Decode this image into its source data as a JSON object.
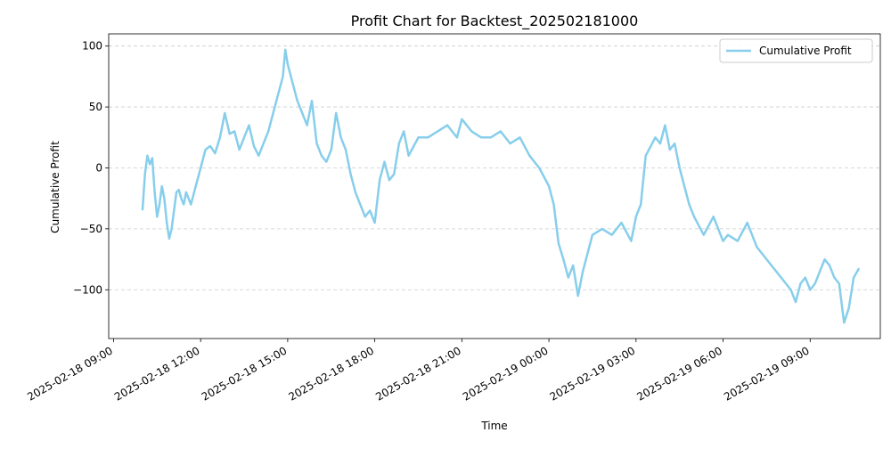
{
  "chart_data": {
    "type": "line",
    "title": "Profit Chart for Backtest_202502181000",
    "xlabel": "Time",
    "ylabel": "Cumulative Profit",
    "x_ticks": [
      "2025-02-18 09:00",
      "2025-02-18 12:00",
      "2025-02-18 15:00",
      "2025-02-18 18:00",
      "2025-02-18 21:00",
      "2025-02-19 00:00",
      "2025-02-19 03:00",
      "2025-02-19 06:00",
      "2025-02-19 09:00"
    ],
    "y_ticks": [
      -100,
      -50,
      0,
      50,
      100
    ],
    "xlim": [
      "2025-02-18 08:50",
      "2025-02-19 11:25"
    ],
    "ylim": [
      -140,
      110
    ],
    "grid": {
      "y": true,
      "x": false,
      "style": "dashed"
    },
    "legend": {
      "position": "top-right"
    },
    "colors": {
      "series": "#87ceeb",
      "grid": "#cccccc",
      "axis": "#000000"
    },
    "series": [
      {
        "name": "Cumulative Profit",
        "x": [
          "2025-02-18 10:00",
          "2025-02-18 10:05",
          "2025-02-18 10:10",
          "2025-02-18 10:15",
          "2025-02-18 10:20",
          "2025-02-18 10:25",
          "2025-02-18 10:30",
          "2025-02-18 10:35",
          "2025-02-18 10:40",
          "2025-02-18 10:45",
          "2025-02-18 10:50",
          "2025-02-18 10:55",
          "2025-02-18 11:00",
          "2025-02-18 11:05",
          "2025-02-18 11:10",
          "2025-02-18 11:15",
          "2025-02-18 11:20",
          "2025-02-18 11:25",
          "2025-02-18 11:30",
          "2025-02-18 11:40",
          "2025-02-18 11:50",
          "2025-02-18 12:00",
          "2025-02-18 12:10",
          "2025-02-18 12:20",
          "2025-02-18 12:30",
          "2025-02-18 12:40",
          "2025-02-18 12:50",
          "2025-02-18 13:00",
          "2025-02-18 13:10",
          "2025-02-18 13:20",
          "2025-02-18 13:30",
          "2025-02-18 13:40",
          "2025-02-18 13:50",
          "2025-02-18 14:00",
          "2025-02-18 14:10",
          "2025-02-18 14:20",
          "2025-02-18 14:30",
          "2025-02-18 14:40",
          "2025-02-18 14:50",
          "2025-02-18 14:55",
          "2025-02-18 15:00",
          "2025-02-18 15:10",
          "2025-02-18 15:20",
          "2025-02-18 15:30",
          "2025-02-18 15:40",
          "2025-02-18 15:50",
          "2025-02-18 16:00",
          "2025-02-18 16:10",
          "2025-02-18 16:20",
          "2025-02-18 16:30",
          "2025-02-18 16:40",
          "2025-02-18 16:50",
          "2025-02-18 17:00",
          "2025-02-18 17:10",
          "2025-02-18 17:20",
          "2025-02-18 17:30",
          "2025-02-18 17:40",
          "2025-02-18 17:50",
          "2025-02-18 18:00",
          "2025-02-18 18:10",
          "2025-02-18 18:20",
          "2025-02-18 18:30",
          "2025-02-18 18:40",
          "2025-02-18 18:50",
          "2025-02-18 19:00",
          "2025-02-18 19:10",
          "2025-02-18 19:30",
          "2025-02-18 19:50",
          "2025-02-18 20:10",
          "2025-02-18 20:30",
          "2025-02-18 20:50",
          "2025-02-18 21:00",
          "2025-02-18 21:20",
          "2025-02-18 21:40",
          "2025-02-18 22:00",
          "2025-02-18 22:20",
          "2025-02-18 22:40",
          "2025-02-18 23:00",
          "2025-02-18 23:20",
          "2025-02-18 23:40",
          "2025-02-19 00:00",
          "2025-02-19 00:10",
          "2025-02-19 00:20",
          "2025-02-19 00:30",
          "2025-02-19 00:40",
          "2025-02-19 00:50",
          "2025-02-19 01:00",
          "2025-02-19 01:10",
          "2025-02-19 01:20",
          "2025-02-19 01:30",
          "2025-02-19 01:50",
          "2025-02-19 02:10",
          "2025-02-19 02:30",
          "2025-02-19 02:50",
          "2025-02-19 03:00",
          "2025-02-19 03:10",
          "2025-02-19 03:20",
          "2025-02-19 03:40",
          "2025-02-19 03:50",
          "2025-02-19 04:00",
          "2025-02-19 04:10",
          "2025-02-19 04:20",
          "2025-02-19 04:30",
          "2025-02-19 04:40",
          "2025-02-19 04:50",
          "2025-02-19 05:00",
          "2025-02-19 05:20",
          "2025-02-19 05:40",
          "2025-02-19 05:50",
          "2025-02-19 06:00",
          "2025-02-19 06:10",
          "2025-02-19 06:30",
          "2025-02-19 06:50",
          "2025-02-19 07:10",
          "2025-02-19 07:30",
          "2025-02-19 07:50",
          "2025-02-19 08:10",
          "2025-02-19 08:20",
          "2025-02-19 08:30",
          "2025-02-19 08:40",
          "2025-02-19 08:50",
          "2025-02-19 09:00",
          "2025-02-19 09:10",
          "2025-02-19 09:20",
          "2025-02-19 09:30",
          "2025-02-19 09:40",
          "2025-02-19 09:50",
          "2025-02-19 10:00",
          "2025-02-19 10:10",
          "2025-02-19 10:20",
          "2025-02-19 10:30",
          "2025-02-19 10:40"
        ],
        "y": [
          -34,
          -5,
          10,
          3,
          8,
          -20,
          -40,
          -30,
          -15,
          -25,
          -45,
          -58,
          -50,
          -35,
          -20,
          -18,
          -25,
          -30,
          -20,
          -30,
          -15,
          0,
          15,
          18,
          12,
          25,
          45,
          28,
          30,
          15,
          25,
          35,
          18,
          10,
          20,
          30,
          45,
          60,
          75,
          97,
          85,
          70,
          55,
          45,
          35,
          55,
          20,
          10,
          5,
          15,
          45,
          25,
          15,
          -5,
          -20,
          -30,
          -40,
          -35,
          -45,
          -10,
          5,
          -10,
          -5,
          20,
          30,
          10,
          25,
          25,
          30,
          35,
          25,
          40,
          30,
          25,
          25,
          30,
          20,
          25,
          10,
          0,
          -15,
          -30,
          -62,
          -75,
          -90,
          -80,
          -105,
          -85,
          -70,
          -55,
          -50,
          -55,
          -45,
          -60,
          -40,
          -30,
          10,
          25,
          20,
          35,
          15,
          20,
          0,
          -15,
          -30,
          -40,
          -55,
          -40,
          -50,
          -60,
          -55,
          -60,
          -45,
          -65,
          -75,
          -85,
          -95,
          -100,
          -110,
          -95,
          -90,
          -100,
          -95,
          -85,
          -75,
          -80,
          -90,
          -95,
          -127,
          -115,
          -90,
          -83
        ]
      }
    ]
  }
}
